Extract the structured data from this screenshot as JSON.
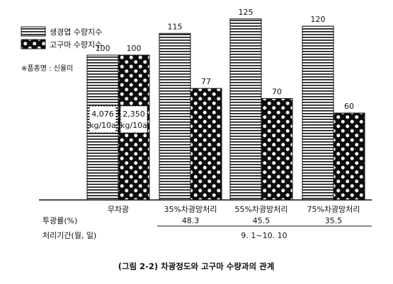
{
  "chart_data": {
    "type": "bar",
    "caption": "(그림 2-2) 차광정도와 고구마 수량과의 관계",
    "note": "※품종명 : 신율미",
    "categories": [
      "무차광",
      "35%차광망처리",
      "55%차광망처리",
      "75%차광망처리"
    ],
    "transmittance_label": "투광률(%)",
    "transmittance": [
      "",
      "48.3",
      "45.5",
      "35.5"
    ],
    "period_label": "처리기간(월, 일)",
    "period": "9. 1~10. 10",
    "series": [
      {
        "name": "생경엽 수량지수",
        "pattern": "horizontal-lines",
        "values": [
          100,
          115,
          125,
          120
        ]
      },
      {
        "name": "고구마 수량지수",
        "pattern": "polka-dots",
        "values": [
          100,
          77,
          70,
          60
        ]
      }
    ],
    "value_labels": [
      [
        "100",
        "115",
        "125",
        "120"
      ],
      [
        "100",
        "77",
        "70",
        "60"
      ]
    ],
    "baseline_yield": [
      {
        "value": "4,076",
        "unit": "kg/10a"
      },
      {
        "value": "2,350",
        "unit": "kg/10a"
      }
    ],
    "ylim": [
      0,
      140
    ],
    "grid": false,
    "legend_position": "top-left"
  }
}
